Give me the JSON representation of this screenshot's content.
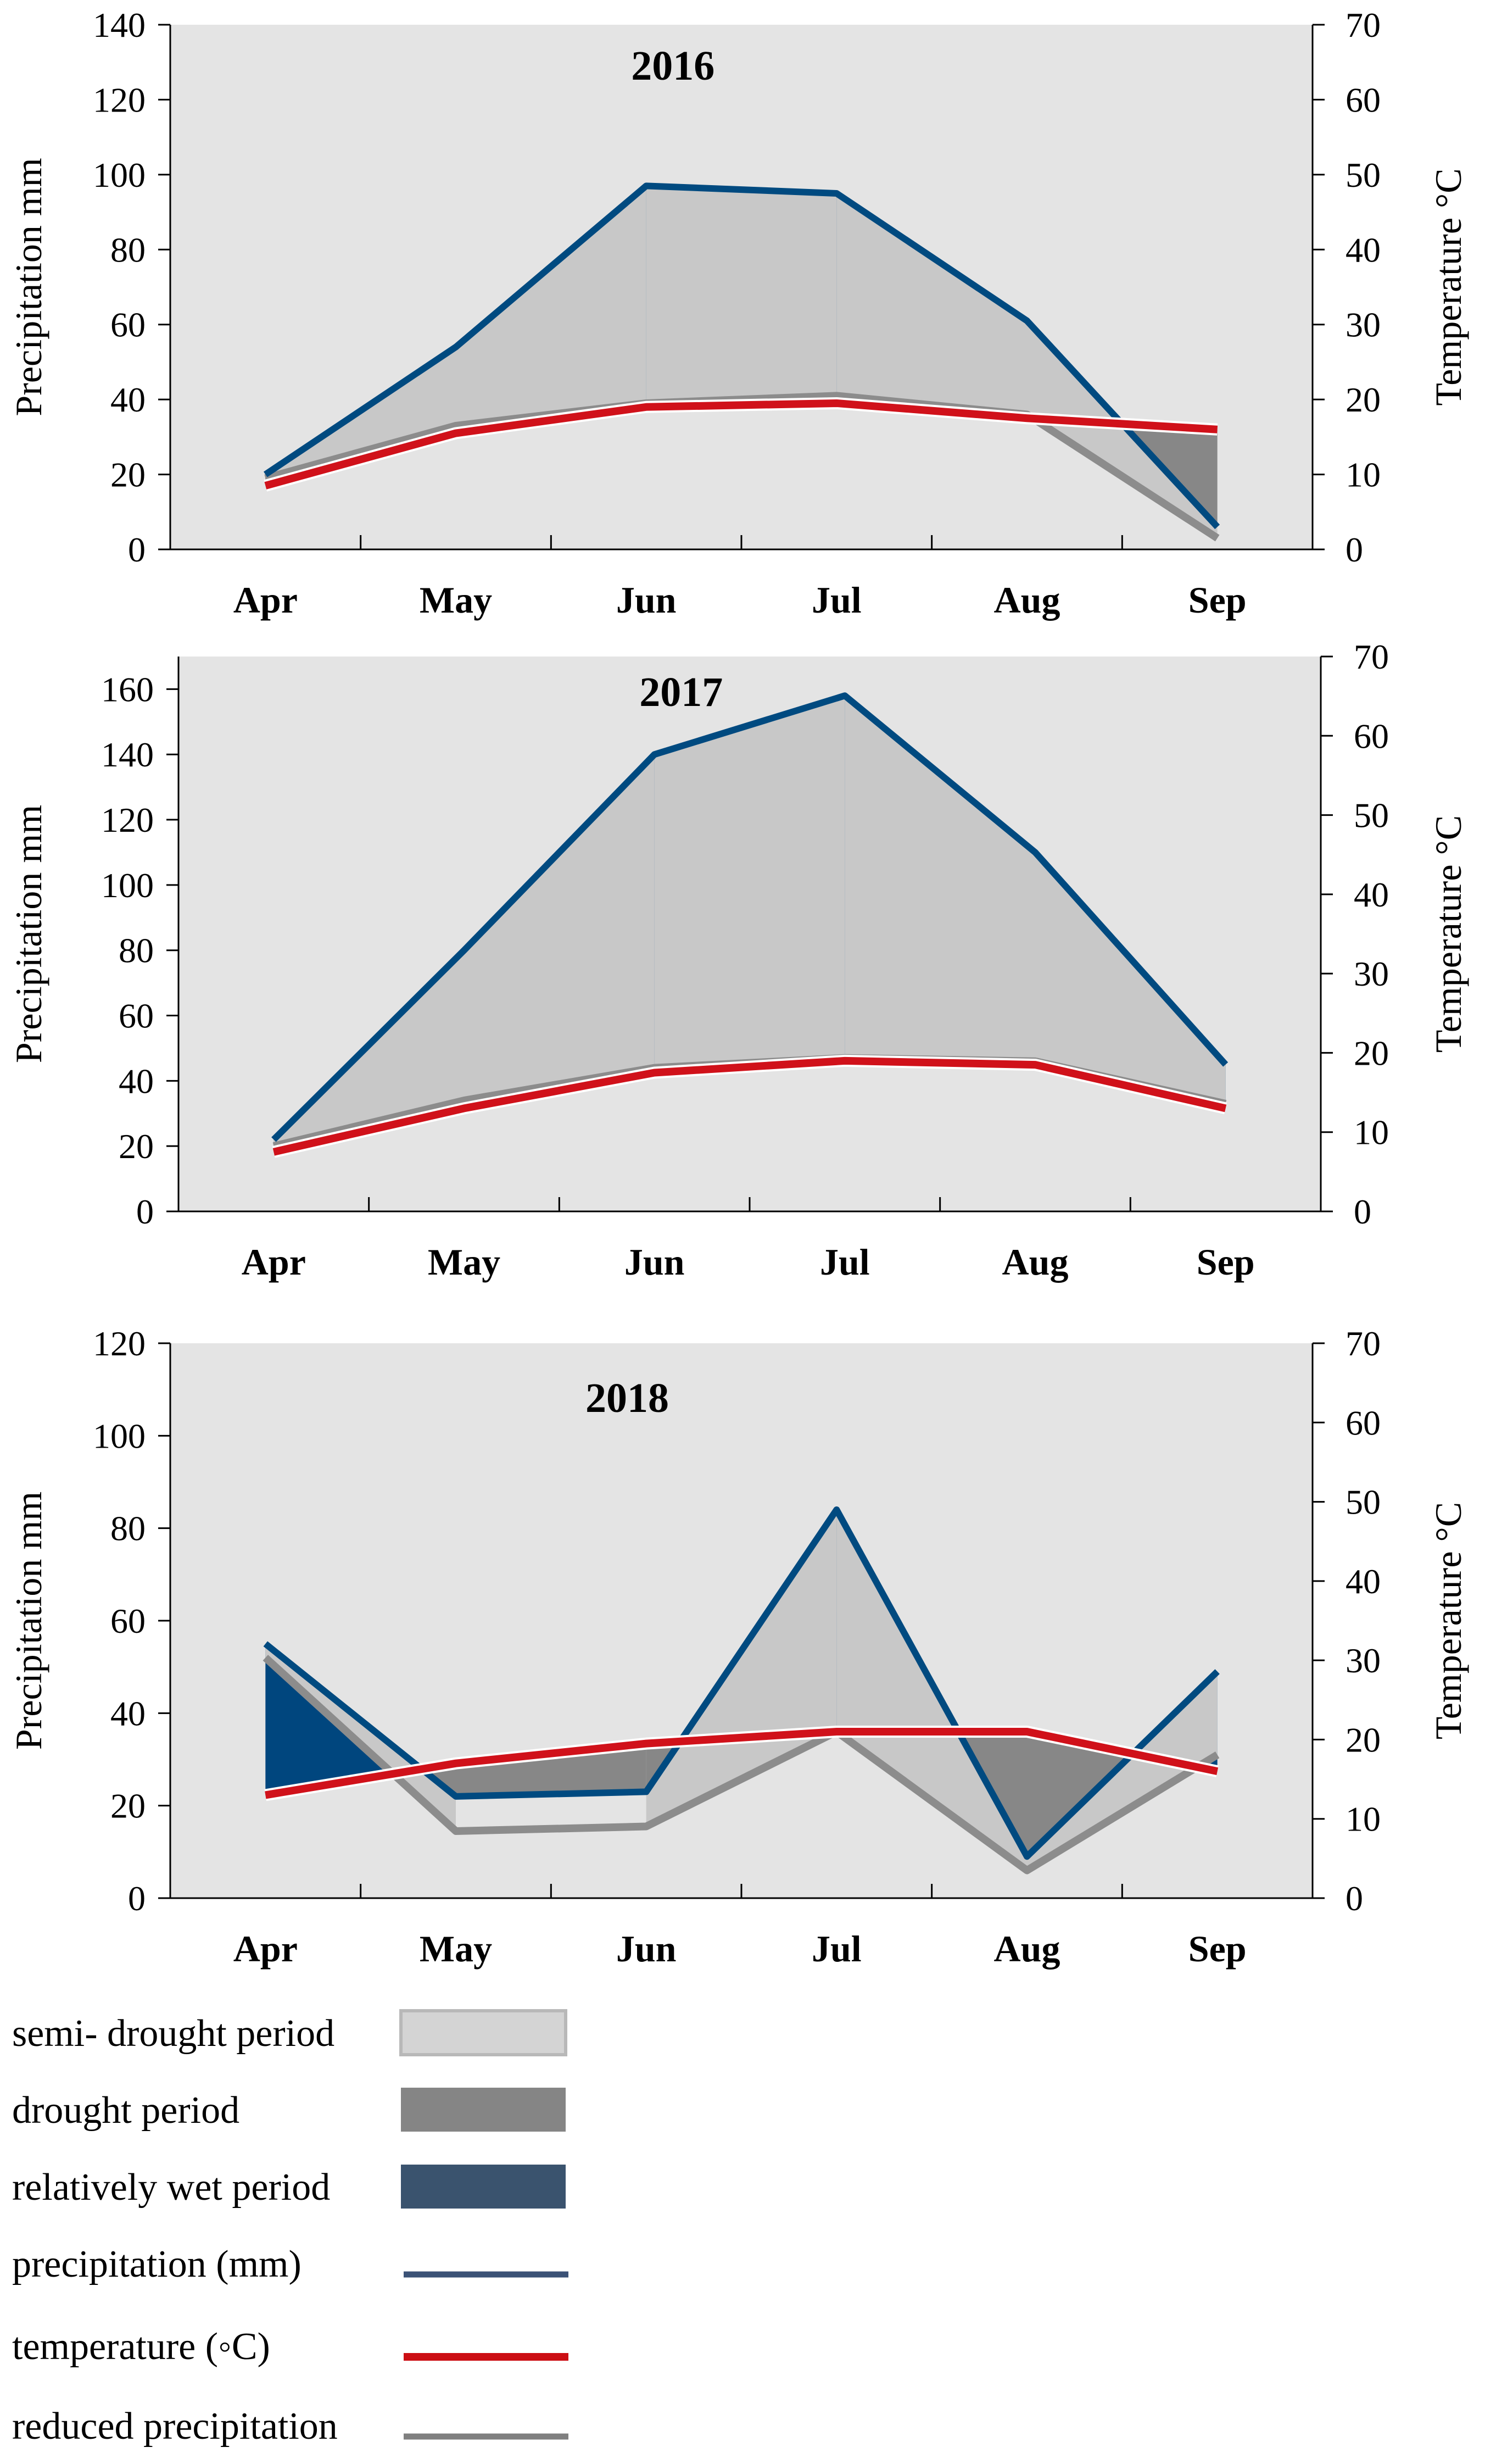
{
  "chart_data": [
    {
      "type": "line",
      "title": "2016",
      "categories": [
        "Apr",
        "May",
        "Jun",
        "Jul",
        "Aug",
        "Sep"
      ],
      "ylabel": "Precipitation mm",
      "y2label": "Temperature °C",
      "ylim": [
        0,
        140
      ],
      "y2lim": [
        0,
        70
      ],
      "yticks": [
        "0",
        "20",
        "40",
        "60",
        "80",
        "100",
        "120",
        "140"
      ],
      "y2ticks": [
        "0",
        "10",
        "20",
        "30",
        "40",
        "50",
        "60",
        "70"
      ],
      "series": [
        {
          "name": "precipitation (mm)",
          "axis": "left",
          "values": [
            20,
            54,
            97,
            95,
            61,
            6
          ]
        },
        {
          "name": "reduced precipitation",
          "axis": "left",
          "values": [
            19,
            33,
            39,
            41,
            36,
            3
          ]
        },
        {
          "name": "temperature (°C)",
          "axis": "right",
          "values": [
            8.5,
            15.5,
            19,
            19.5,
            17.5,
            16
          ]
        }
      ]
    },
    {
      "type": "line",
      "title": "2017",
      "categories": [
        "Apr",
        "May",
        "Jun",
        "Jul",
        "Aug",
        "Sep"
      ],
      "ylabel": "Precipitation mm",
      "y2label": "Temperature °C",
      "ylim": [
        0,
        170
      ],
      "y2lim": [
        0,
        70
      ],
      "yticks": [
        "0",
        "20",
        "40",
        "60",
        "80",
        "100",
        "120",
        "140",
        "160"
      ],
      "y2ticks": [
        "0",
        "10",
        "20",
        "30",
        "40",
        "50",
        "60",
        "70"
      ],
      "series": [
        {
          "name": "precipitation (mm)",
          "axis": "left",
          "values": [
            22,
            80,
            140,
            158,
            110,
            45
          ]
        },
        {
          "name": "reduced precipitation",
          "axis": "left",
          "values": [
            20,
            34,
            44,
            47,
            46,
            33
          ]
        },
        {
          "name": "temperature (°C)",
          "axis": "right",
          "values": [
            7.5,
            13,
            17.5,
            19,
            18.5,
            13
          ]
        }
      ]
    },
    {
      "type": "line",
      "title": "2018",
      "categories": [
        "Apr",
        "May",
        "Jun",
        "Jul",
        "Aug",
        "Sep"
      ],
      "ylabel": "Precipitation mm",
      "y2label": "Temperature °C",
      "ylim": [
        0,
        120
      ],
      "y2lim": [
        0,
        70
      ],
      "yticks": [
        "0",
        "20",
        "40",
        "60",
        "80",
        "100",
        "120"
      ],
      "y2ticks": [
        "0",
        "10",
        "20",
        "30",
        "40",
        "50",
        "60",
        "70"
      ],
      "series": [
        {
          "name": "precipitation (mm)",
          "axis": "left",
          "values": [
            55,
            22,
            23,
            84,
            9,
            49
          ]
        },
        {
          "name": "reduced precipitation",
          "axis": "left",
          "values": [
            52,
            14.5,
            15.5,
            36,
            6,
            31
          ]
        },
        {
          "name": "temperature (°C)",
          "axis": "right",
          "values": [
            13,
            17,
            19.5,
            21,
            21,
            16
          ]
        }
      ]
    }
  ],
  "legend": [
    {
      "label": "semi- drought period",
      "kind": "fill",
      "color": "#d4d4d4"
    },
    {
      "label": "drought period",
      "kind": "fill",
      "color": "#858585"
    },
    {
      "label": "relatively wet period",
      "kind": "fill",
      "color": "#3a536e"
    },
    {
      "label": "precipitation (mm)",
      "kind": "line",
      "color": "#3b5276"
    },
    {
      "label": "temperature (◦C)",
      "kind": "line",
      "color": "#cc0e14"
    },
    {
      "label": "reduced precipitation",
      "kind": "line",
      "color": "#808080"
    }
  ],
  "colors": {
    "plot_bg": "#e4e4e4",
    "wet": "#00467e",
    "semi_drought": "#c8c8c8",
    "drought": "#878787",
    "precip_line": "#004a80",
    "reduced_line": "#8c8c8c",
    "temp_line": "#d0111a"
  }
}
